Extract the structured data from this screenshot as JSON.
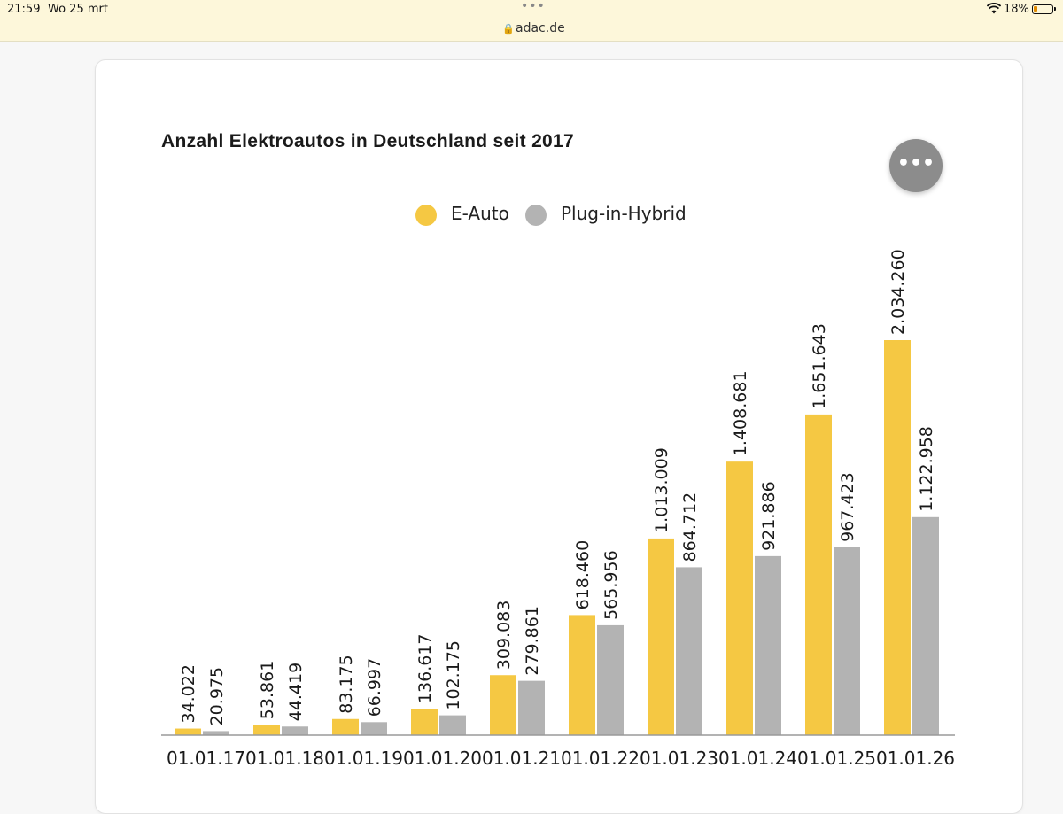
{
  "status_bar": {
    "time": "21:59",
    "date": "Wo 25 mrt",
    "battery_percent": "18%",
    "icons": [
      "wifi-icon",
      "battery-icon"
    ]
  },
  "browser": {
    "url": "adac.de",
    "icons": [
      "lock-icon",
      "more-dots-icon"
    ]
  },
  "menu_button": {
    "label": "•••",
    "icon": "more-horizontal-icon"
  },
  "colors": {
    "e_auto": "#f5c843",
    "plug_in_hybrid": "#b3b3b3"
  },
  "chart_data": {
    "type": "bar",
    "title": "Anzahl Elektroautos in Deutschland seit 2017",
    "categories": [
      "01.01.17",
      "01.01.18",
      "01.01.19",
      "01.01.20",
      "01.01.21",
      "01.01.22",
      "01.01.23",
      "01.01.24",
      "01.01.25",
      "01.01.26"
    ],
    "series": [
      {
        "name": "E-Auto",
        "color": "#f5c843",
        "values": [
          34022,
          53861,
          83175,
          136617,
          309083,
          618460,
          1013009,
          1408681,
          1651643,
          2034260
        ],
        "labels": [
          "34.022",
          "53.861",
          "83.175",
          "136.617",
          "309.083",
          "618.460",
          "1.013.009",
          "1.408.681",
          "1.651.643",
          "2.034.260"
        ]
      },
      {
        "name": "Plug-in-Hybrid",
        "color": "#b3b3b3",
        "values": [
          20975,
          44419,
          66997,
          102175,
          279861,
          565956,
          864712,
          921886,
          967423,
          1122958
        ],
        "labels": [
          "20.975",
          "44.419",
          "66.997",
          "102.175",
          "279.861",
          "565.956",
          "864.712",
          "921.886",
          "967.423",
          "1.122.958"
        ]
      }
    ],
    "ylim": [
      0,
      2034260
    ],
    "legend": "top-center",
    "grid": false
  }
}
